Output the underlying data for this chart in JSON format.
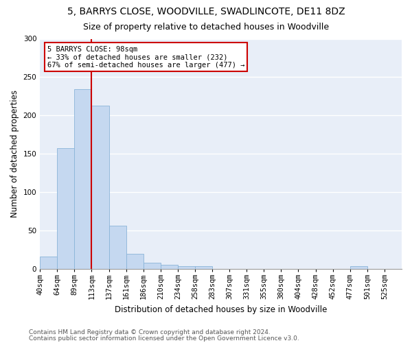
{
  "title": "5, BARRYS CLOSE, WOODVILLE, SWADLINCOTE, DE11 8DZ",
  "subtitle": "Size of property relative to detached houses in Woodville",
  "xlabel": "Distribution of detached houses by size in Woodville",
  "ylabel": "Number of detached properties",
  "bin_labels": [
    "40sqm",
    "64sqm",
    "89sqm",
    "113sqm",
    "137sqm",
    "161sqm",
    "186sqm",
    "210sqm",
    "234sqm",
    "258sqm",
    "283sqm",
    "307sqm",
    "331sqm",
    "355sqm",
    "380sqm",
    "404sqm",
    "428sqm",
    "452sqm",
    "477sqm",
    "501sqm",
    "525sqm"
  ],
  "bar_heights": [
    16,
    157,
    234,
    213,
    56,
    19,
    8,
    5,
    3,
    3,
    0,
    0,
    0,
    0,
    0,
    0,
    0,
    0,
    3,
    0,
    0
  ],
  "bar_color": "#c5d8f0",
  "bar_edge_color": "#8ab4d8",
  "property_bin_index": 2,
  "property_label": "5 BARRYS CLOSE: 98sqm",
  "annotation_line1": "← 33% of detached houses are smaller (232)",
  "annotation_line2": "67% of semi-detached houses are larger (477) →",
  "vline_color": "#cc0000",
  "annotation_box_edge": "#cc0000",
  "ylim": [
    0,
    300
  ],
  "yticks": [
    0,
    50,
    100,
    150,
    200,
    250,
    300
  ],
  "footer_line1": "Contains HM Land Registry data © Crown copyright and database right 2024.",
  "footer_line2": "Contains public sector information licensed under the Open Government Licence v3.0.",
  "background_color": "#e8eef8",
  "grid_color": "#ffffff",
  "title_fontsize": 10,
  "subtitle_fontsize": 9,
  "axis_label_fontsize": 8.5,
  "tick_fontsize": 7.5,
  "footer_fontsize": 6.5,
  "annotation_fontsize": 7.5
}
